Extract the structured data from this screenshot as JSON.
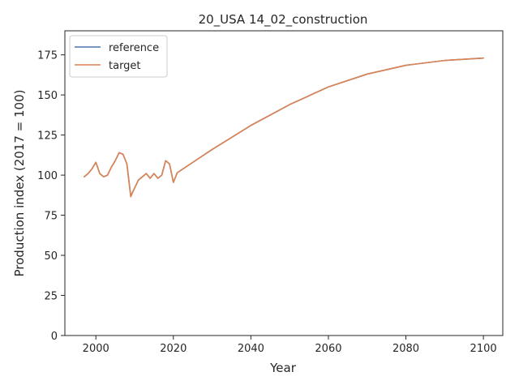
{
  "chart_data": {
    "type": "line",
    "title": "20_USA 14_02_construction",
    "xlabel": "Year",
    "ylabel": "Production index (2017 = 100)",
    "xlim": [
      1992,
      2105
    ],
    "ylim": [
      0,
      190
    ],
    "xticks": [
      2000,
      2020,
      2040,
      2060,
      2080,
      2100
    ],
    "yticks": [
      0,
      25,
      50,
      75,
      100,
      125,
      150,
      175
    ],
    "grid": false,
    "legend": "top-left",
    "colors": {
      "reference": "#4c72b0",
      "target": "#dd8452"
    },
    "series": [
      {
        "name": "reference",
        "color": "#4c72b0",
        "x": [
          1997,
          1998,
          1999,
          2000,
          2001,
          2002,
          2003,
          2004,
          2005,
          2006,
          2007,
          2008,
          2009,
          2010,
          2011,
          2012,
          2013,
          2014,
          2015,
          2016,
          2017,
          2018,
          2019,
          2020,
          2021,
          2030,
          2040,
          2050,
          2060,
          2070,
          2080,
          2090,
          2100
        ],
        "y": [
          99,
          101,
          104,
          108,
          101,
          99,
          100,
          105,
          109,
          114,
          113,
          107,
          87,
          92,
          97,
          99,
          101,
          98,
          101,
          98,
          100,
          109,
          107,
          95.5,
          101.5,
          116,
          131,
          144,
          155,
          163,
          168.5,
          171.5,
          173
        ]
      },
      {
        "name": "target",
        "color": "#dd8452",
        "x": [
          1997,
          1998,
          1999,
          2000,
          2001,
          2002,
          2003,
          2004,
          2005,
          2006,
          2007,
          2008,
          2009,
          2010,
          2011,
          2012,
          2013,
          2014,
          2015,
          2016,
          2017,
          2018,
          2019,
          2020,
          2021,
          2030,
          2040,
          2050,
          2060,
          2070,
          2080,
          2090,
          2100
        ],
        "y": [
          99,
          101,
          104,
          108,
          101,
          99,
          100,
          105,
          109,
          114,
          113,
          107,
          86.5,
          92,
          97,
          99,
          101,
          98,
          101,
          98,
          100,
          109,
          107,
          95.5,
          101.5,
          116,
          131,
          144,
          155,
          163,
          168.5,
          171.5,
          173
        ]
      }
    ]
  }
}
